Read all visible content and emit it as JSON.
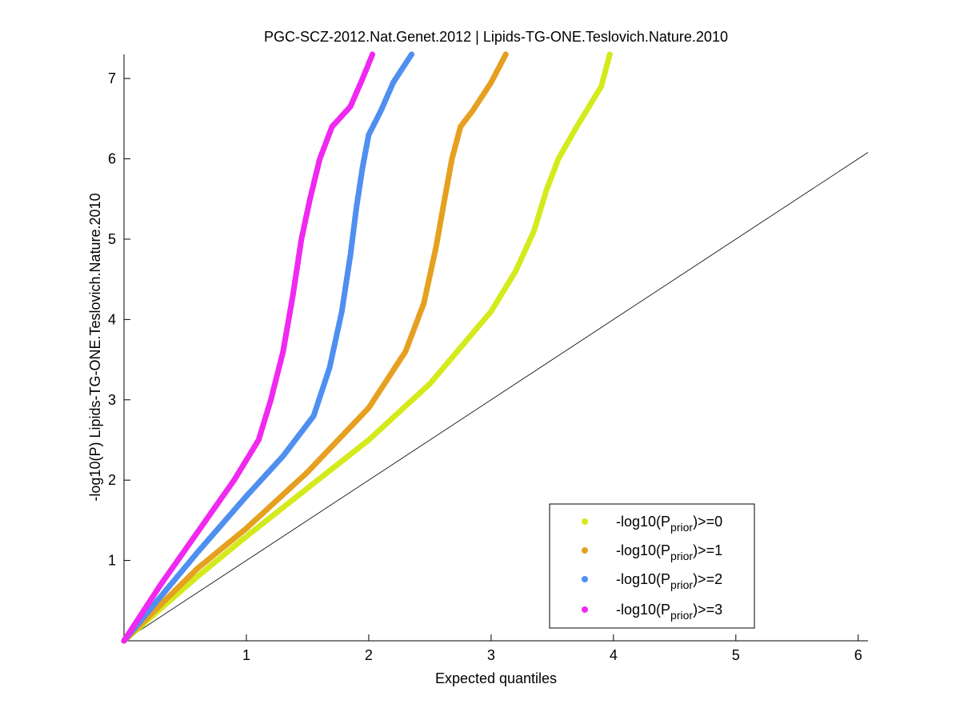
{
  "chart_data": {
    "type": "scatter",
    "title": "PGC-SCZ-2012.Nat.Genet.2012 | Lipids-TG-ONE.Teslovich.Nature.2010",
    "xlabel": "Expected quantiles",
    "ylabel": "-log10(P) Lipids-TG-ONE.Teslovich.Nature.2010",
    "xlim": [
      0,
      6.08
    ],
    "ylim": [
      0,
      7.3
    ],
    "xticks": [
      "1",
      "2",
      "3",
      "4",
      "5",
      "6"
    ],
    "yticks": [
      "1",
      "2",
      "3",
      "4",
      "5",
      "6",
      "7"
    ],
    "grid": false,
    "legend_position": "bottom-right",
    "reference_line": {
      "x": [
        0,
        6.08
      ],
      "y": [
        0,
        6.08
      ],
      "color": "#000000"
    },
    "series": [
      {
        "legend_base": "-log10(P",
        "legend_sub": "prior",
        "legend_tail": ")>=0",
        "color": "#d4ea1c",
        "x": [
          0,
          0.3,
          0.6,
          1.0,
          1.5,
          2.0,
          2.5,
          3.0,
          3.2,
          3.35,
          3.45,
          3.55,
          3.7,
          3.8,
          3.9,
          3.97
        ],
        "y": [
          0,
          0.4,
          0.8,
          1.3,
          1.9,
          2.5,
          3.2,
          4.1,
          4.6,
          5.1,
          5.6,
          6.0,
          6.4,
          6.65,
          6.9,
          7.3
        ]
      },
      {
        "legend_base": "-log10(P",
        "legend_sub": "prior",
        "legend_tail": ")>=1",
        "color": "#e6a020",
        "x": [
          0,
          0.3,
          0.6,
          1.0,
          1.5,
          2.0,
          2.3,
          2.45,
          2.55,
          2.62,
          2.68,
          2.75,
          2.85,
          3.0,
          3.12
        ],
        "y": [
          0,
          0.45,
          0.9,
          1.4,
          2.1,
          2.9,
          3.6,
          4.2,
          4.9,
          5.5,
          6.0,
          6.4,
          6.6,
          6.95,
          7.3
        ]
      },
      {
        "legend_base": "-log10(P",
        "legend_sub": "prior",
        "legend_tail": ")>=2",
        "color": "#4f8ff0",
        "x": [
          0,
          0.3,
          0.6,
          1.0,
          1.3,
          1.55,
          1.68,
          1.78,
          1.85,
          1.9,
          1.95,
          2.0,
          2.1,
          2.2,
          2.35
        ],
        "y": [
          0,
          0.55,
          1.1,
          1.8,
          2.3,
          2.8,
          3.4,
          4.1,
          4.8,
          5.4,
          5.9,
          6.3,
          6.6,
          6.95,
          7.3
        ]
      },
      {
        "legend_base": "-log10(P",
        "legend_sub": "prior",
        "legend_tail": ")>=3",
        "color": "#f028f0",
        "x": [
          0,
          0.3,
          0.6,
          0.9,
          1.1,
          1.2,
          1.3,
          1.38,
          1.45,
          1.52,
          1.6,
          1.7,
          1.85,
          1.95,
          2.03
        ],
        "y": [
          0,
          0.7,
          1.35,
          2.0,
          2.5,
          3.0,
          3.6,
          4.3,
          5.0,
          5.5,
          6.0,
          6.4,
          6.65,
          7.0,
          7.3
        ]
      }
    ]
  }
}
